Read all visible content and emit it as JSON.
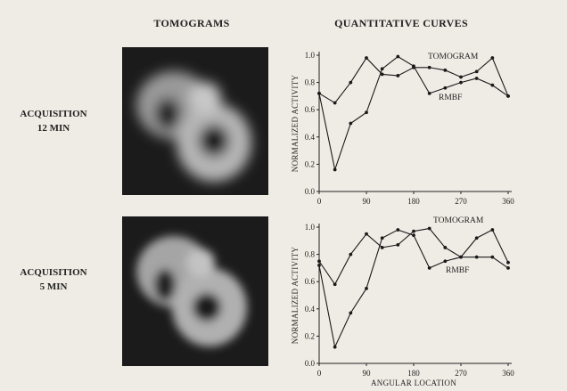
{
  "header": {
    "tomograms": "TOMOGRAMS",
    "curves": "QUANTITATIVE CURVES"
  },
  "rows": [
    {
      "line1": "ACQUISITION",
      "line2": "12 MIN"
    },
    {
      "line1": "ACQUISITION",
      "line2": "5 MIN"
    }
  ],
  "chart_data": [
    {
      "type": "line",
      "y_label": "NORMALIZED ACTIVITY",
      "x": [
        0,
        30,
        60,
        90,
        120,
        150,
        180,
        210,
        240,
        270,
        300,
        330,
        360
      ],
      "xlim": [
        0,
        360
      ],
      "xticks": [
        0,
        90,
        180,
        270,
        360
      ],
      "ylim": [
        0,
        1
      ],
      "yticks": [
        {
          "value": 0,
          "label": "0.0"
        },
        0.2,
        0.4,
        0.6,
        0.8,
        {
          "value": 1,
          "label": "1.0"
        }
      ],
      "series": [
        {
          "name": "TOMOGRAM",
          "color": "#1a1a1a",
          "values": [
            0.72,
            0.65,
            0.8,
            0.98,
            0.86,
            0.85,
            0.91,
            0.91,
            0.89,
            0.84,
            0.88,
            0.98,
            0.7
          ]
        },
        {
          "name": "RMBF",
          "color": "#1a1a1a",
          "values": [
            0.72,
            0.16,
            0.5,
            0.58,
            0.9,
            0.99,
            0.92,
            0.72,
            0.76,
            0.8,
            0.83,
            0.78,
            0.7
          ]
        }
      ]
    },
    {
      "type": "line",
      "y_label": "NORMALIZED ACTIVITY",
      "x_label": "ANGULAR LOCATION",
      "x": [
        0,
        30,
        60,
        90,
        120,
        150,
        180,
        210,
        240,
        270,
        300,
        330,
        360
      ],
      "xlim": [
        0,
        360
      ],
      "xticks": [
        0,
        90,
        180,
        270,
        360
      ],
      "ylim": [
        0,
        1
      ],
      "yticks": [
        {
          "value": 0,
          "label": "0.0"
        },
        0.2,
        0.4,
        0.6,
        0.8,
        {
          "value": 1,
          "label": "1.0"
        }
      ],
      "series": [
        {
          "name": "TOMOGRAM",
          "color": "#1a1a1a",
          "values": [
            0.75,
            0.58,
            0.8,
            0.95,
            0.85,
            0.87,
            0.97,
            0.99,
            0.85,
            0.78,
            0.92,
            0.98,
            0.74
          ]
        },
        {
          "name": "RMBF",
          "color": "#1a1a1a",
          "values": [
            0.72,
            0.12,
            0.37,
            0.55,
            0.92,
            0.98,
            0.94,
            0.7,
            0.75,
            0.78,
            0.78,
            0.78,
            0.7
          ]
        }
      ]
    }
  ]
}
